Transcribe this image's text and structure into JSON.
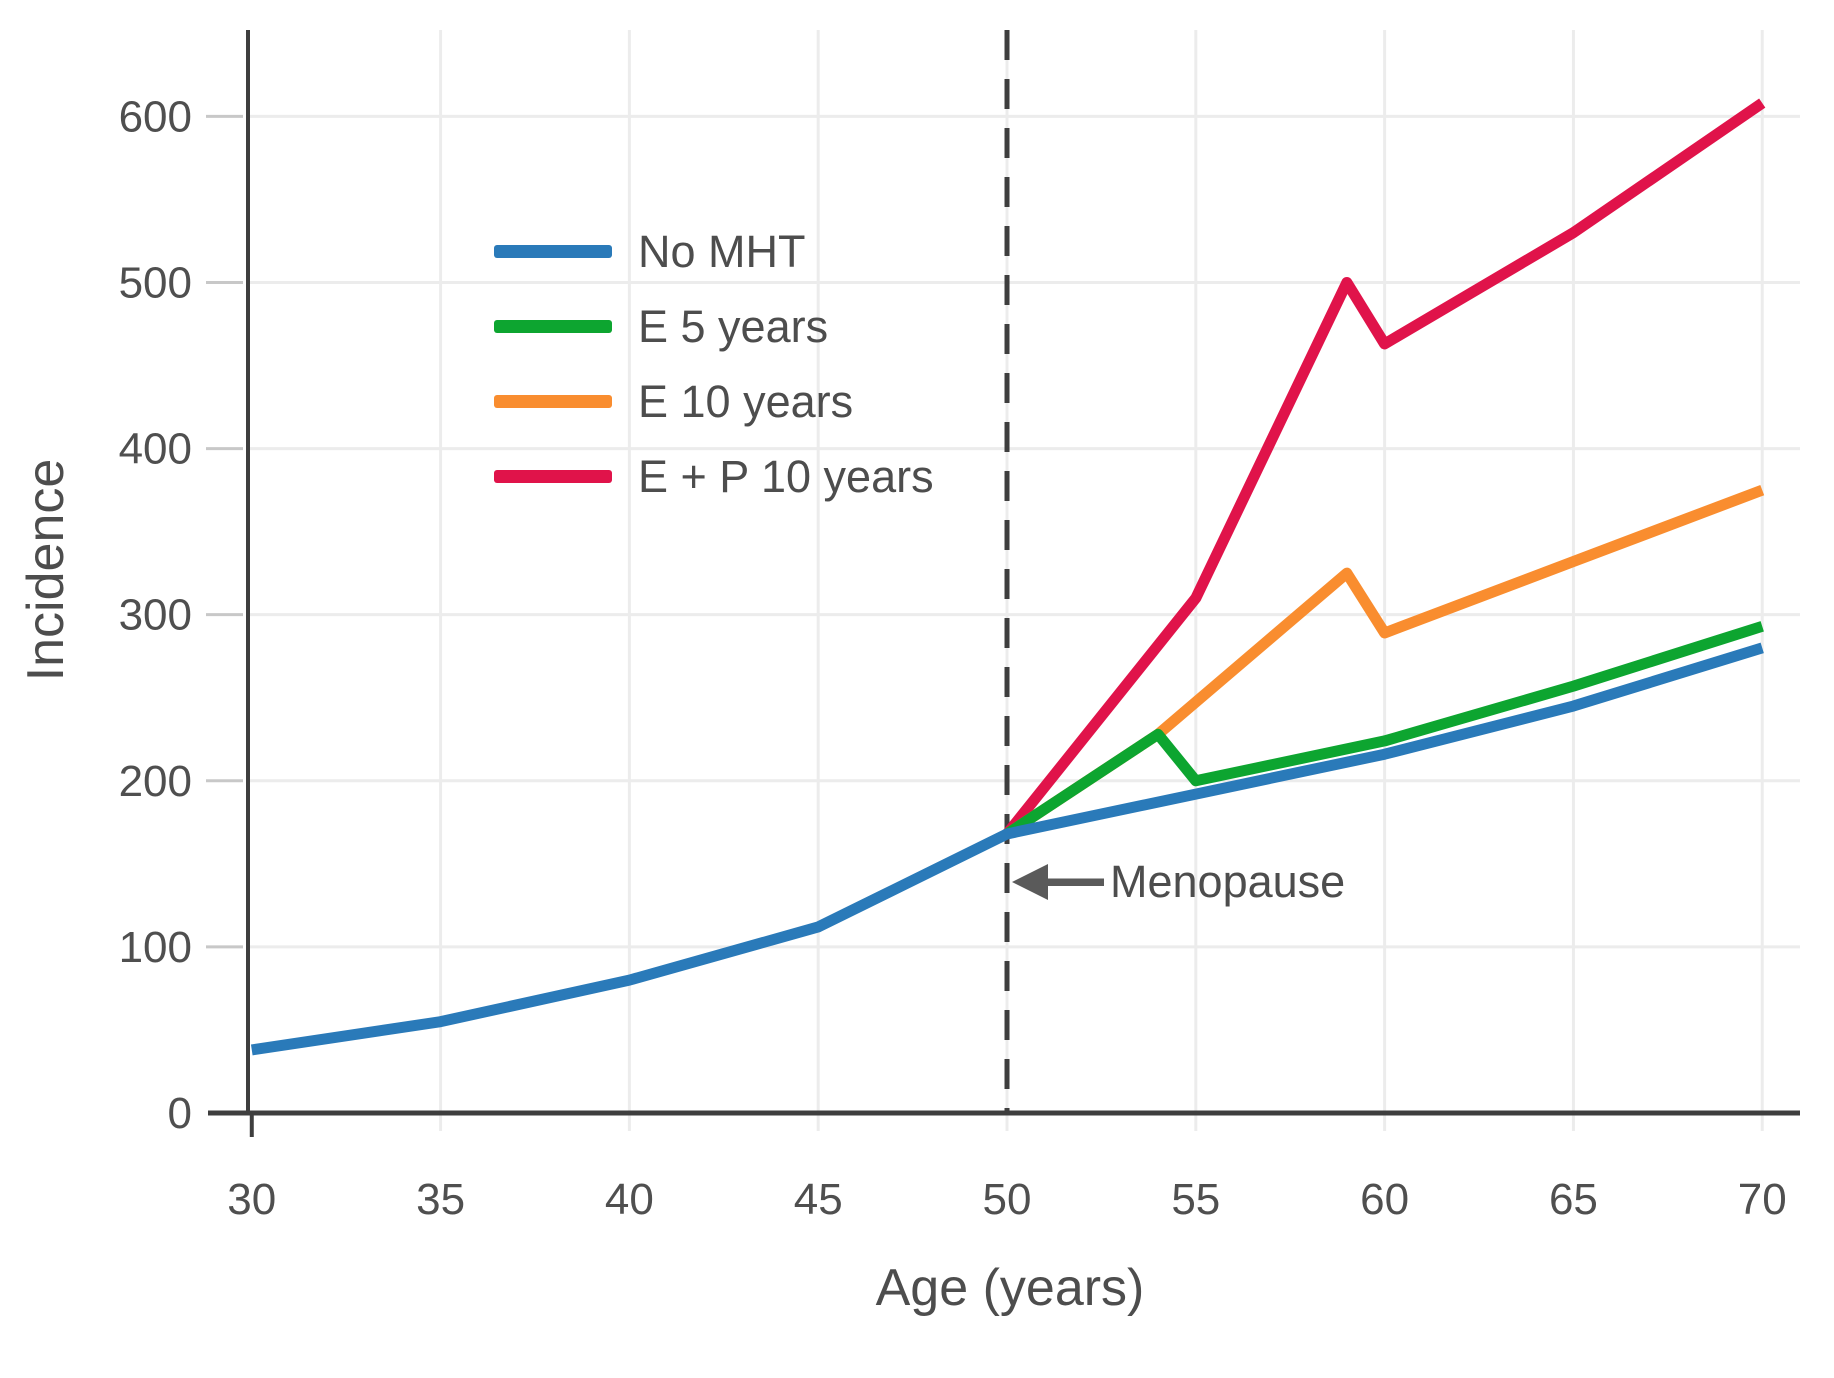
{
  "figure": {
    "x_axis_title": "Age (years)",
    "y_axis_title": "Incidence"
  },
  "chart_data": {
    "type": "line",
    "title": "",
    "xlabel": "Age (years)",
    "ylabel": "Incidence",
    "x_range": [
      29.9,
      71.0
    ],
    "y_range": [
      0,
      652
    ],
    "x_ticks": [
      30,
      35,
      40,
      45,
      50,
      55,
      60,
      65,
      70
    ],
    "y_ticks": [
      0,
      100,
      200,
      300,
      400,
      500,
      600
    ],
    "grid": "on",
    "legend_position": "upper-left-inside",
    "series": [
      {
        "name": "No MHT",
        "color": "#2a7ab9",
        "points": [
          [
            30,
            38
          ],
          [
            35,
            55
          ],
          [
            40,
            80
          ],
          [
            45,
            112
          ],
          [
            50,
            168
          ],
          [
            55,
            192
          ],
          [
            60,
            216
          ],
          [
            65,
            245
          ],
          [
            70,
            280
          ]
        ]
      },
      {
        "name": "E 5 years",
        "color": "#0da530",
        "points": [
          [
            50,
            168
          ],
          [
            54,
            228
          ],
          [
            55,
            200
          ],
          [
            60,
            224
          ],
          [
            65,
            257
          ],
          [
            70,
            293
          ]
        ]
      },
      {
        "name": "E 10 years",
        "color": "#f98d2f",
        "points": [
          [
            50,
            168
          ],
          [
            54,
            228
          ],
          [
            59,
            325
          ],
          [
            60,
            289
          ],
          [
            65,
            332
          ],
          [
            70,
            375
          ]
        ]
      },
      {
        "name": "E + P 10 years",
        "color": "#e0134a",
        "points": [
          [
            50,
            168
          ],
          [
            55,
            310
          ],
          [
            59,
            500
          ],
          [
            60,
            463
          ],
          [
            65,
            530
          ],
          [
            70,
            608
          ]
        ]
      }
    ],
    "reference_lines": [
      {
        "axis": "x",
        "value": 50,
        "style": "dashed",
        "color": "#3e3e3e"
      }
    ],
    "annotations": [
      {
        "text": "Menopause",
        "arrow": "left",
        "points_to_x": 50
      }
    ],
    "style": {
      "gridline_color": "#ececec",
      "tick_color": "#c8c8c8",
      "spine_color": "#3e3e3e",
      "label_color": "#4f4f4f"
    }
  }
}
